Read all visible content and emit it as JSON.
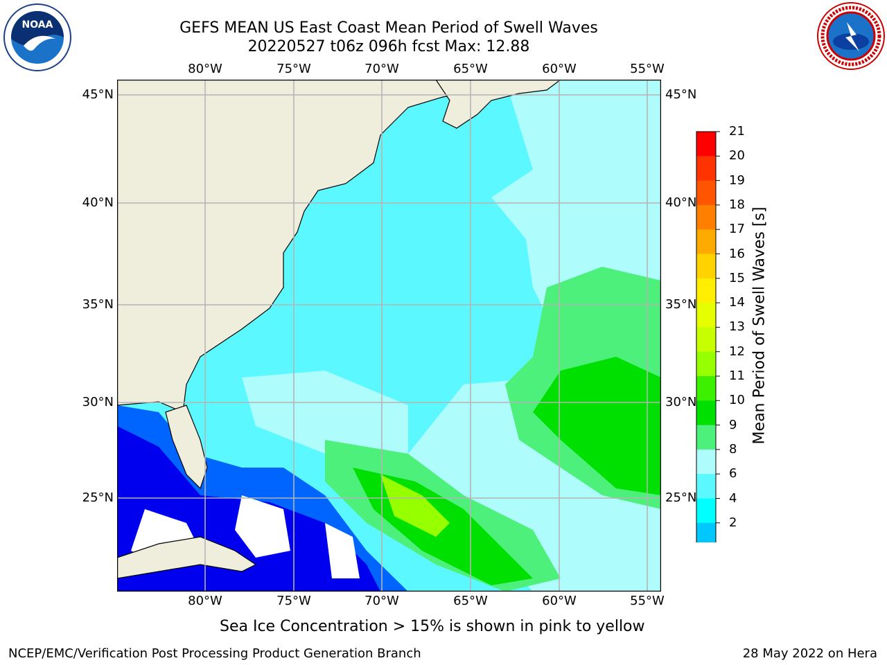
{
  "title_line1": "GEFS MEAN US East Coast Mean Period of Swell Waves",
  "title_line2": "20220527 t06z 096h fcst   Max: 12.88",
  "lon_labels": [
    "80°W",
    "75°W",
    "70°W",
    "65°W",
    "60°W",
    "55°W"
  ],
  "lat_labels": [
    "45°N",
    "40°N",
    "35°N",
    "30°N",
    "25°N"
  ],
  "colorbar": {
    "label": "Mean Period of Swell Waves [s]",
    "ticks": [
      "21",
      "20",
      "19",
      "18",
      "17",
      "16",
      "15",
      "14",
      "13",
      "12",
      "11",
      "10",
      "9",
      "8",
      "6",
      "4",
      "2"
    ],
    "colors": [
      "#ff0000",
      "#ff3300",
      "#ff5500",
      "#ff7f00",
      "#ffaa00",
      "#ffd200",
      "#ffee00",
      "#e6ff00",
      "#c8ff00",
      "#96ff00",
      "#3cf000",
      "#00e000",
      "#4cf07a",
      "#aefcfc",
      "#5cf8ff",
      "#00ffff",
      "#00c8ff",
      "#0064ff"
    ],
    "under_color": "#0000ee"
  },
  "map_colors": {
    "land": "#efeedc",
    "coast": "#000000",
    "grid": "#b4b4b4"
  },
  "sea_ice_note": "Sea Ice Concentration > 15% is shown in pink to yellow",
  "footer_left": "NCEP/EMC/Verification Post Processing Product Generation Branch",
  "footer_right": "28 May 2022 on Hera",
  "logos": {
    "noaa_text": "NOAA",
    "nws_text": "NATIONAL WEATHER SERVICE"
  }
}
